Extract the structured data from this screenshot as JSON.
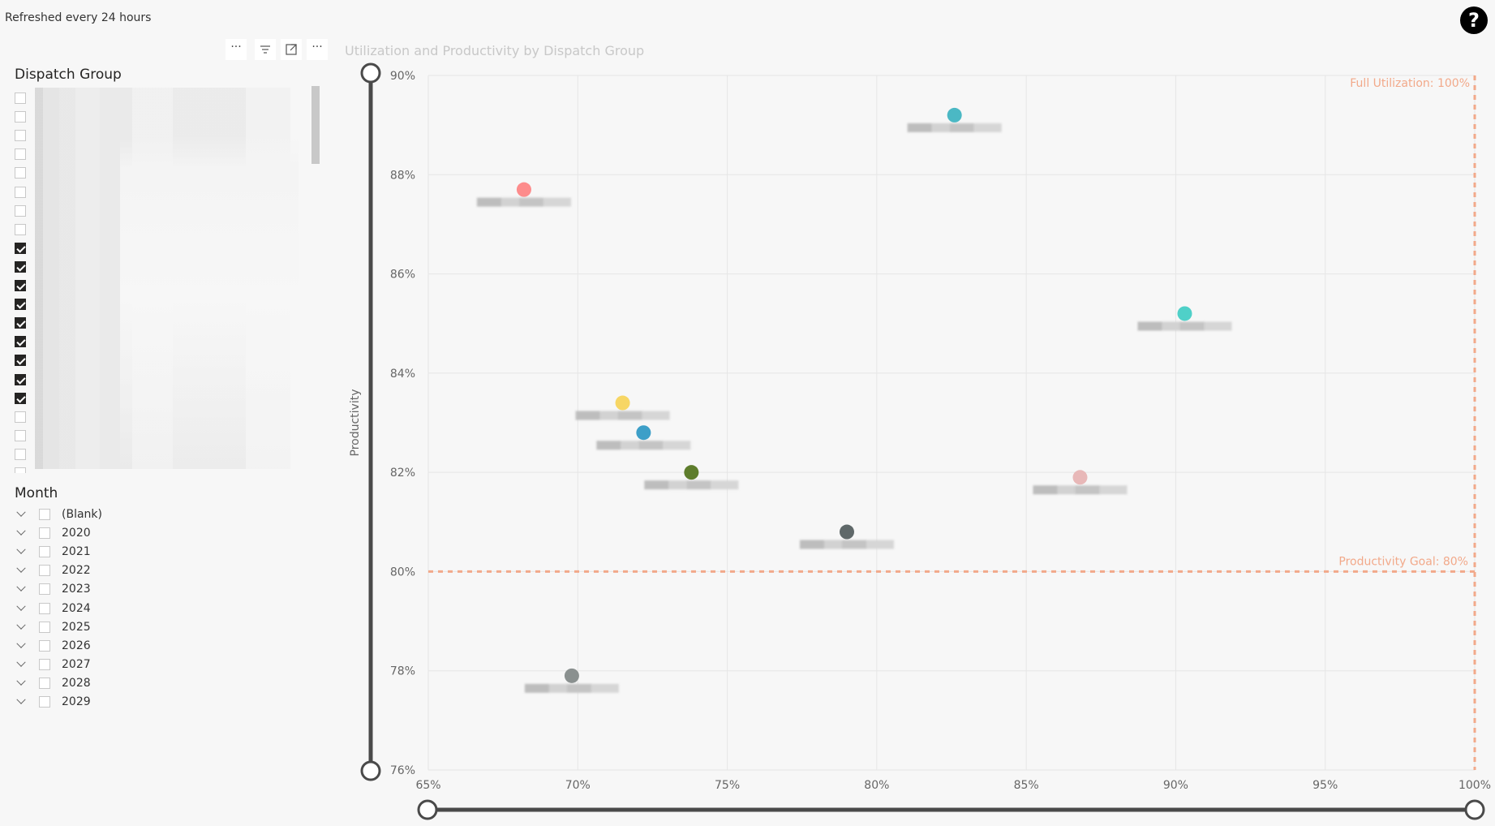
{
  "header": {
    "refresh_note": "Refreshed every 24 hours",
    "help_glyph": "?"
  },
  "slicer_toolbar": {
    "more_label": "···",
    "focus_icon": "focus-mode-icon",
    "filter_icon": "filter-icon"
  },
  "dispatch_group_slicer": {
    "title": "Dispatch Group",
    "items": [
      {
        "checked": false
      },
      {
        "checked": false
      },
      {
        "checked": false
      },
      {
        "checked": false
      },
      {
        "checked": false
      },
      {
        "checked": false
      },
      {
        "checked": false
      },
      {
        "checked": false
      },
      {
        "checked": true
      },
      {
        "checked": true
      },
      {
        "checked": true
      },
      {
        "checked": true
      },
      {
        "checked": true
      },
      {
        "checked": true
      },
      {
        "checked": true
      },
      {
        "checked": true
      },
      {
        "checked": true
      },
      {
        "checked": false
      },
      {
        "checked": false
      },
      {
        "checked": false
      },
      {
        "checked": false
      }
    ]
  },
  "month_slicer": {
    "title": "Month",
    "items": [
      {
        "label": "(Blank)",
        "checked": false
      },
      {
        "label": "2020",
        "checked": false
      },
      {
        "label": "2021",
        "checked": false
      },
      {
        "label": "2022",
        "checked": false
      },
      {
        "label": "2023",
        "checked": false
      },
      {
        "label": "2024",
        "checked": false
      },
      {
        "label": "2025",
        "checked": false
      },
      {
        "label": "2026",
        "checked": false
      },
      {
        "label": "2027",
        "checked": false
      },
      {
        "label": "2028",
        "checked": false
      },
      {
        "label": "2029",
        "checked": false
      }
    ]
  },
  "chart_data": {
    "type": "scatter",
    "title": "Utilization and Productivity by Dispatch Group",
    "xlabel": "",
    "ylabel": "Productivity",
    "xlim": [
      65,
      100
    ],
    "ylim": [
      76,
      90
    ],
    "x_ticks": [
      "65%",
      "70%",
      "75%",
      "80%",
      "85%",
      "90%",
      "95%",
      "100%"
    ],
    "y_ticks": [
      "76%",
      "78%",
      "80%",
      "82%",
      "84%",
      "86%",
      "88%",
      "90%"
    ],
    "grid": true,
    "reference_lines": [
      {
        "axis": "x",
        "value": 100,
        "label": "Full Utilization: 100%",
        "color": "#f2a98a"
      },
      {
        "axis": "y",
        "value": 80,
        "label": "Productivity Goal: 80%",
        "color": "#f2a98a"
      }
    ],
    "points": [
      {
        "x": 82.6,
        "y": 89.2,
        "color": "#4bb8c4"
      },
      {
        "x": 68.2,
        "y": 87.7,
        "color": "#fd8c8c"
      },
      {
        "x": 90.3,
        "y": 85.2,
        "color": "#4fd0c8"
      },
      {
        "x": 71.5,
        "y": 83.4,
        "color": "#f7d664"
      },
      {
        "x": 72.2,
        "y": 82.8,
        "color": "#3d9fc8"
      },
      {
        "x": 73.8,
        "y": 82.0,
        "color": "#5e7d2c"
      },
      {
        "x": 86.8,
        "y": 81.9,
        "color": "#e8b8b8"
      },
      {
        "x": 79.0,
        "y": 80.8,
        "color": "#5f6869"
      },
      {
        "x": 69.8,
        "y": 77.9,
        "color": "#8a908f"
      }
    ]
  }
}
